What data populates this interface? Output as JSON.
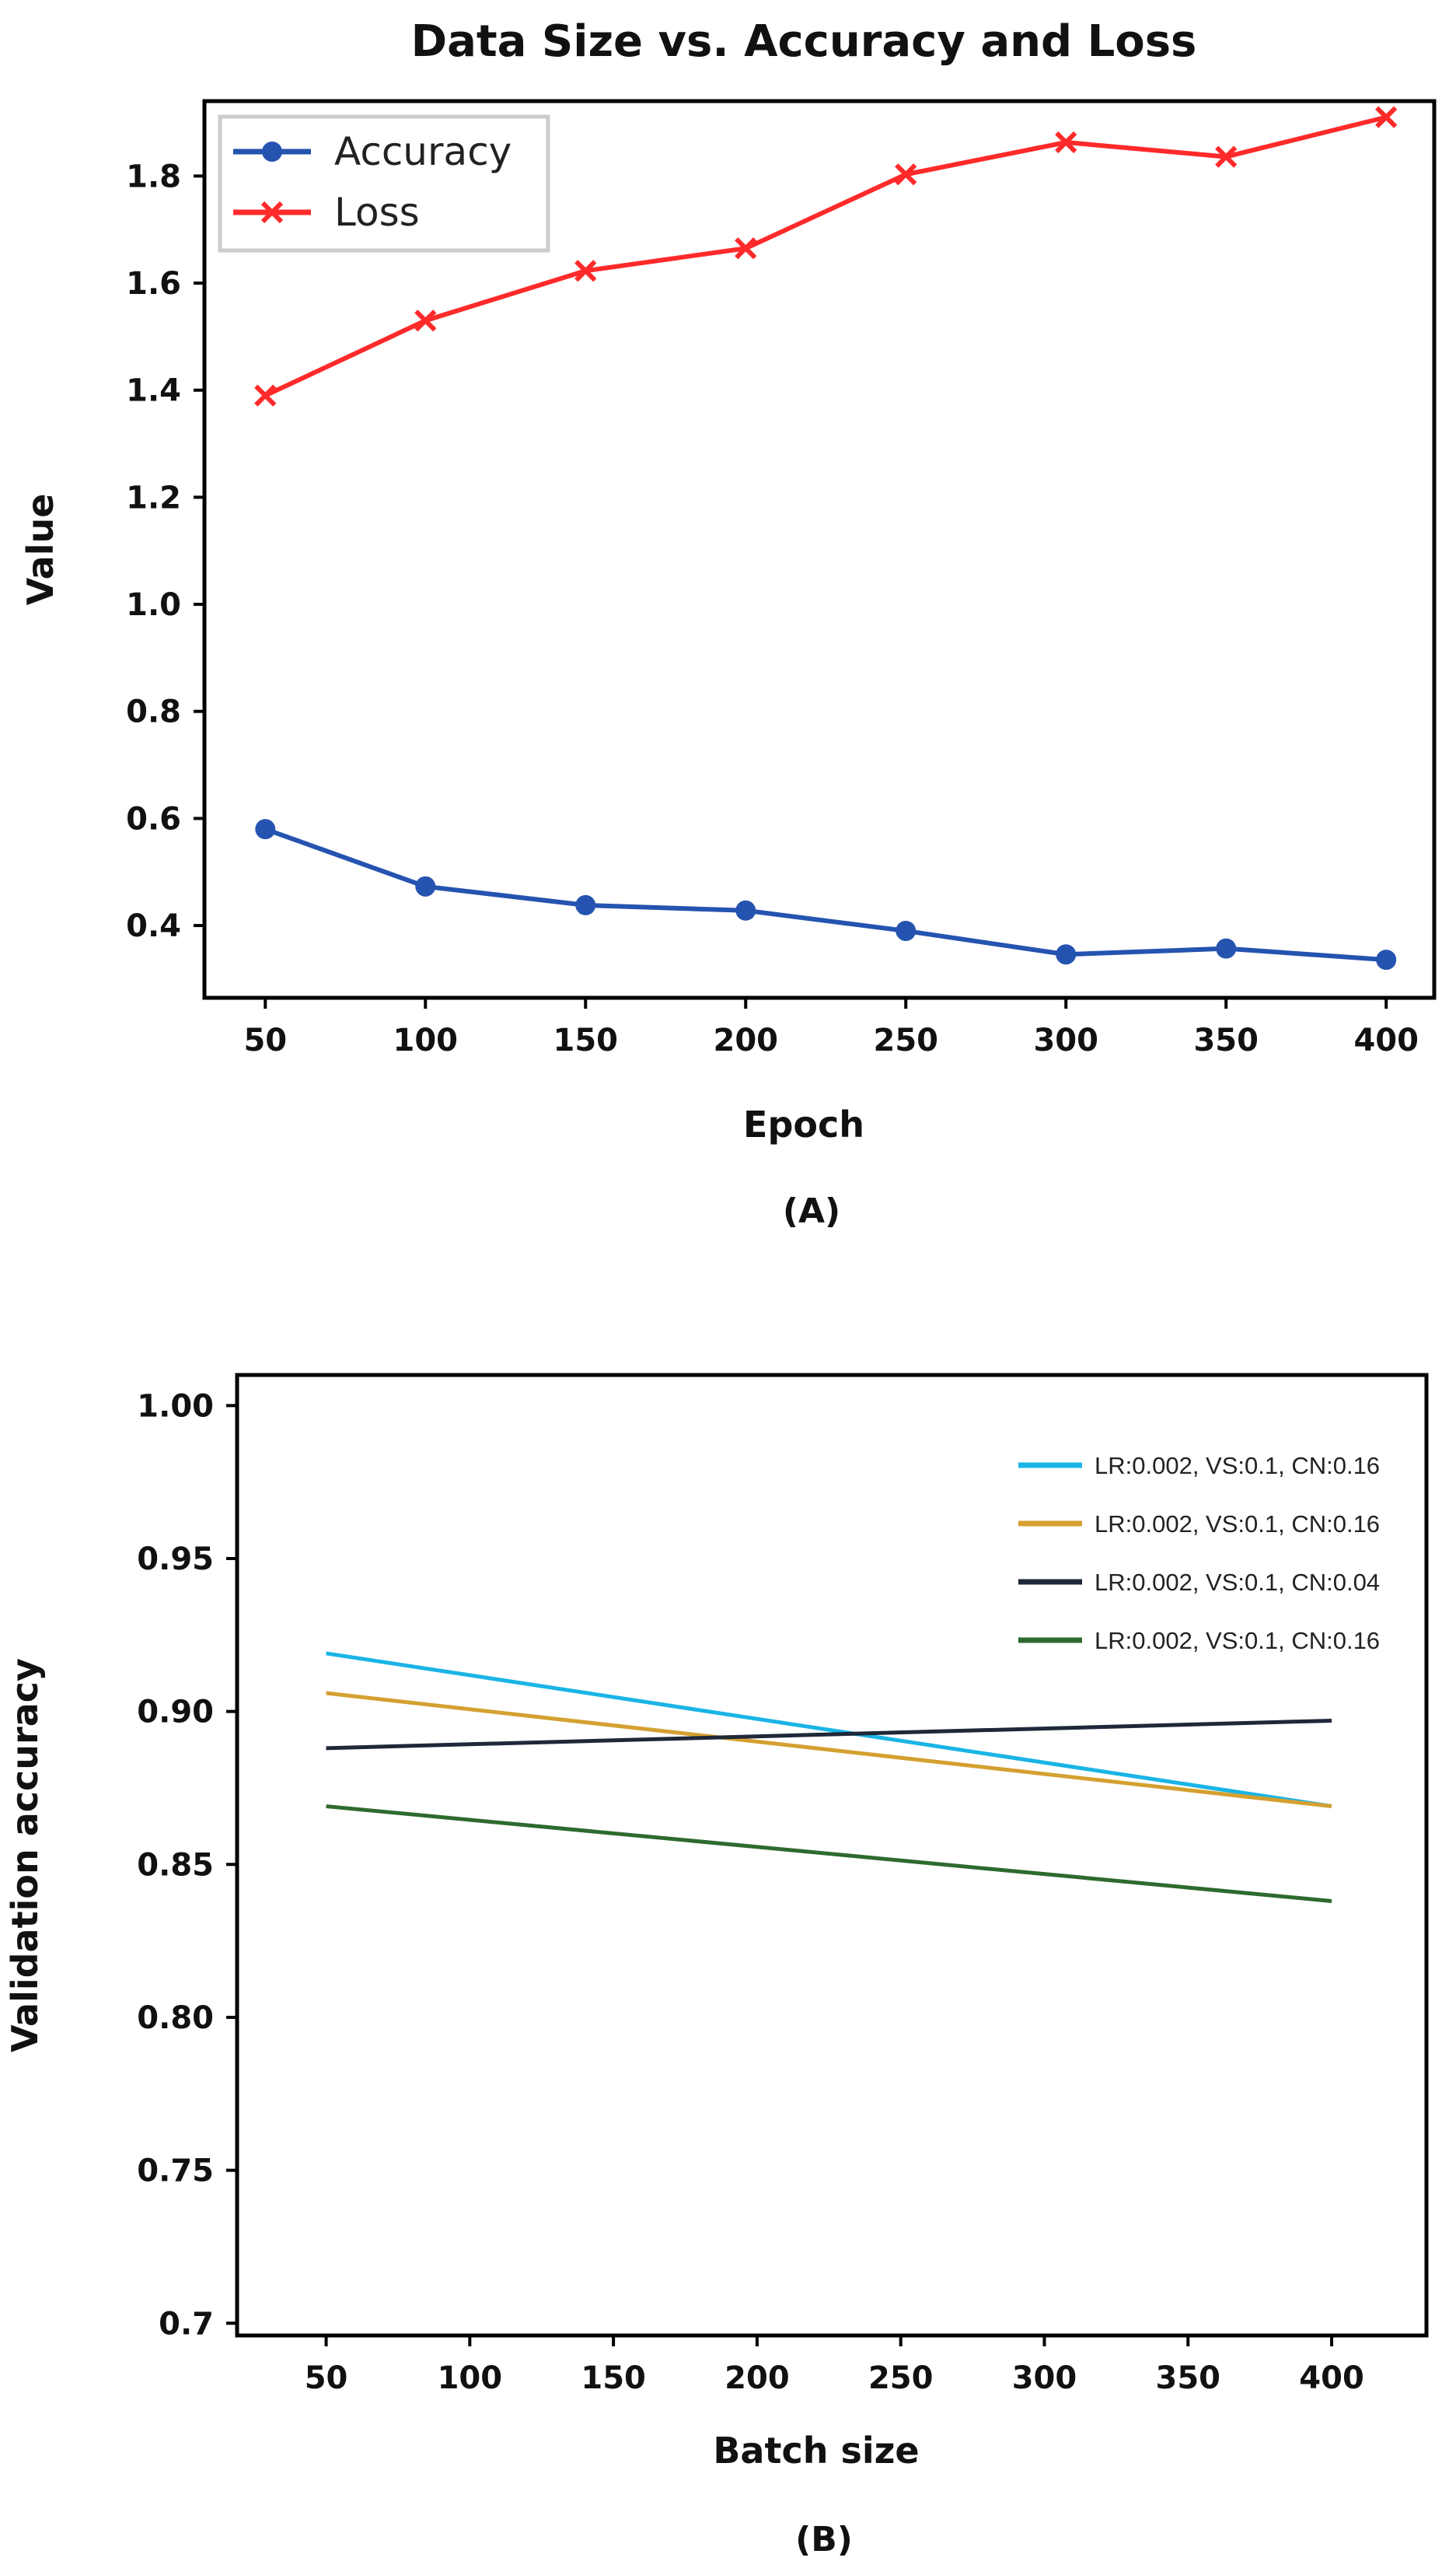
{
  "chart_data": [
    {
      "type": "line",
      "title": "Data Size vs. Accuracy and Loss",
      "xlabel": "Epoch",
      "ylabel": "Value",
      "panel_label": "(A)",
      "x": [
        50,
        100,
        150,
        200,
        250,
        300,
        350,
        400
      ],
      "x_ticks": [
        50,
        100,
        150,
        200,
        250,
        300,
        350,
        400
      ],
      "y_ticks": [
        0.4,
        0.6,
        0.8,
        1.0,
        1.2,
        1.4,
        1.6,
        1.8
      ],
      "y_tick_labels": [
        "0.4",
        "0.6",
        "0.8",
        "1.0",
        "1.2",
        "1.4",
        "1.6",
        "1.8"
      ],
      "xlim": [
        31,
        415
      ],
      "ylim": [
        0.265,
        1.94
      ],
      "legend_position": "top-left",
      "series": [
        {
          "name": "Accuracy",
          "color": "#2553b0",
          "marker": "circle",
          "values": [
            0.58,
            0.473,
            0.438,
            0.428,
            0.39,
            0.346,
            0.357,
            0.336
          ]
        },
        {
          "name": "Loss",
          "color": "#ff2a2a",
          "marker": "x",
          "values": [
            1.39,
            1.53,
            1.623,
            1.665,
            1.803,
            1.863,
            1.836,
            1.91
          ]
        }
      ]
    },
    {
      "type": "line",
      "title": "",
      "xlabel": "Batch size",
      "ylabel": "Validation accuracy",
      "panel_label": "(B)",
      "x": [
        50,
        400
      ],
      "x_ticks": [
        50,
        100,
        150,
        200,
        250,
        300,
        350,
        400
      ],
      "y_ticks": [
        0.7,
        0.75,
        0.8,
        0.85,
        0.9,
        0.95,
        1.0
      ],
      "y_tick_labels": [
        "0.7",
        "0.75",
        "0.80",
        "0.85",
        "0.90",
        "0.95",
        "1.00"
      ],
      "xlim": [
        19,
        433
      ],
      "ylim": [
        0.696,
        1.01
      ],
      "legend_position": "top-right",
      "series": [
        {
          "name": "LR:0.002, VS:0.1, CN:0.16",
          "color": "#1ab4e6",
          "values": [
            0.919,
            0.869
          ]
        },
        {
          "name": "LR:0.002, VS:0.1, CN:0.16",
          "color": "#d4a030",
          "values": [
            0.906,
            0.869
          ]
        },
        {
          "name": "LR:0.002, VS:0.1, CN:0.04",
          "color": "#1e2838",
          "values": [
            0.888,
            0.897
          ]
        },
        {
          "name": "LR:0.002, VS:0.1, CN:0.16",
          "color": "#2e6a2e",
          "values": [
            0.869,
            0.838
          ]
        }
      ]
    }
  ]
}
